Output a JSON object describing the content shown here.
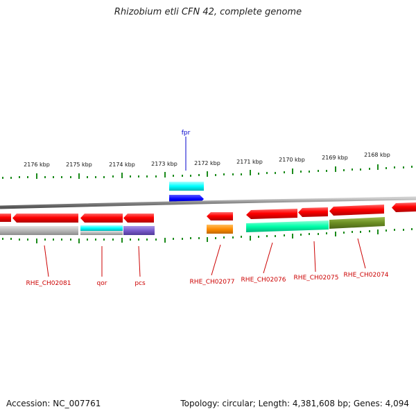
{
  "title": "Rhizobium etli CFN 42, complete genome",
  "footer": {
    "accession": "Accession: NC_007761",
    "summary": "Topology: circular; Length: 4,381,608 bp; Genes: 4,094"
  },
  "scale_labels": [
    "2176 kbp",
    "2175 kbp",
    "2174 kbp",
    "2173 kbp",
    "2172 kbp",
    "2171 kbp",
    "2170 kbp",
    "2169 kbp",
    "2168 kbp"
  ],
  "gene_labels": {
    "fpr": "fpr",
    "rhe_ch02081": "RHE_CH02081",
    "qor": "qor",
    "pcs": "pcs",
    "rhe_ch02077": "RHE_CH02077",
    "rhe_ch02076": "RHE_CH02076",
    "rhe_ch02075": "RHE_CH02075",
    "rhe_ch02074": "RHE_CH02074"
  },
  "colors": {
    "gene_red": "#ff0000",
    "label_red": "#cc0000",
    "label_blue": "#0000cc",
    "tick_green": "#1a8a1a",
    "backbone": "#888888",
    "fpr_cyan": "#00ffff",
    "fpr_blue": "#0000ff",
    "qor_cyan": "#00ffff",
    "pcs_purple": "#7a5ccc",
    "rhe_ch02081_grey": "#b8b8b8",
    "rhe_ch02077_orange": "#ff8c00",
    "rhe_ch02076_green": "#00ffaa",
    "rhe_ch02074_olive": "#6b8e23"
  }
}
